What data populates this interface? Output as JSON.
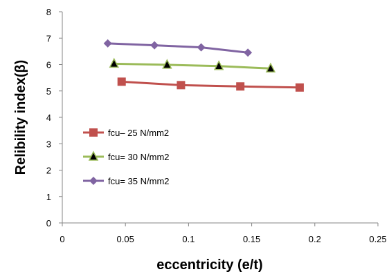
{
  "chart_data": {
    "type": "line",
    "xlabel": "eccentricity (e/t)",
    "ylabel": "Relibility index(β)",
    "xlim": [
      0,
      0.25
    ],
    "ylim": [
      0,
      8
    ],
    "x_ticks": [
      "0",
      "0.05",
      "0.1",
      "0.15",
      "0.2",
      "0.25"
    ],
    "y_ticks": [
      "0",
      "1",
      "2",
      "3",
      "4",
      "5",
      "6",
      "7",
      "8"
    ],
    "grid": false,
    "legend_position": "left",
    "series": [
      {
        "name": "fcu– 25 N/mm2",
        "color": "#c0504d",
        "marker": "square",
        "x": [
          0.047,
          0.094,
          0.141,
          0.188
        ],
        "y": [
          5.35,
          5.22,
          5.17,
          5.13
        ]
      },
      {
        "name": "fcu= 30 N/mm2",
        "color": "#9bbb59",
        "marker": "triangle",
        "x": [
          0.041,
          0.083,
          0.124,
          0.165
        ],
        "y": [
          6.03,
          5.99,
          5.94,
          5.85
        ]
      },
      {
        "name": "fcu= 35 N/mm2",
        "color": "#8064a2",
        "marker": "diamond",
        "x": [
          0.036,
          0.073,
          0.11,
          0.147
        ],
        "y": [
          6.8,
          6.73,
          6.65,
          6.45
        ]
      }
    ]
  }
}
